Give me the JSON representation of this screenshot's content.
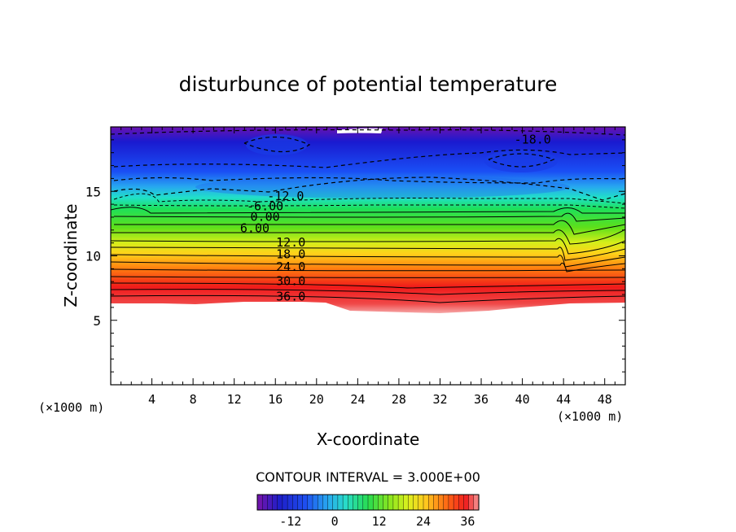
{
  "chart_data": {
    "type": "heatmap",
    "title": "disturbunce of potential temperature",
    "xlabel": "X-coordinate",
    "ylabel": "Z-coordinate",
    "x_unit_left": "(×1000 m)",
    "x_unit_right": "(×1000 m)",
    "xlim": [
      0,
      50
    ],
    "ylim": [
      0,
      20
    ],
    "x_ticks": [
      4,
      8,
      12,
      16,
      20,
      24,
      28,
      32,
      36,
      40,
      44,
      48
    ],
    "x_tick_labels": [
      "4",
      "8",
      "12",
      "16",
      "20",
      "24",
      "28",
      "32",
      "36",
      "40",
      "44",
      "48"
    ],
    "y_ticks": [
      5,
      10,
      15
    ],
    "y_tick_labels": [
      "5",
      "10",
      "15"
    ],
    "contour_interval_text": "CONTOUR INTERVAL = 3.000E+00",
    "contour_labels": [
      {
        "text": "-18.0",
        "x": 41,
        "z": 19.1
      },
      {
        "text": "-12.0",
        "x": 17,
        "z": 14.7
      },
      {
        "text": "-6.00",
        "x": 15,
        "z": 13.9
      },
      {
        "text": "0.00",
        "x": 15,
        "z": 13.1
      },
      {
        "text": "6.00",
        "x": 14,
        "z": 12.2
      },
      {
        "text": "12.0",
        "x": 17.5,
        "z": 11.1
      },
      {
        "text": "18.0",
        "x": 17.5,
        "z": 10.2
      },
      {
        "text": "24.0",
        "x": 17.5,
        "z": 9.2
      },
      {
        "text": "30.0",
        "x": 17.5,
        "z": 8.1
      },
      {
        "text": "36.0",
        "x": 17.5,
        "z": 6.9
      }
    ],
    "colorbar": {
      "min": -21,
      "max": 39,
      "ticks": [
        -12,
        0,
        12,
        24,
        36
      ],
      "tick_labels": [
        "-12",
        "0",
        "12",
        "24",
        "36"
      ]
    }
  }
}
